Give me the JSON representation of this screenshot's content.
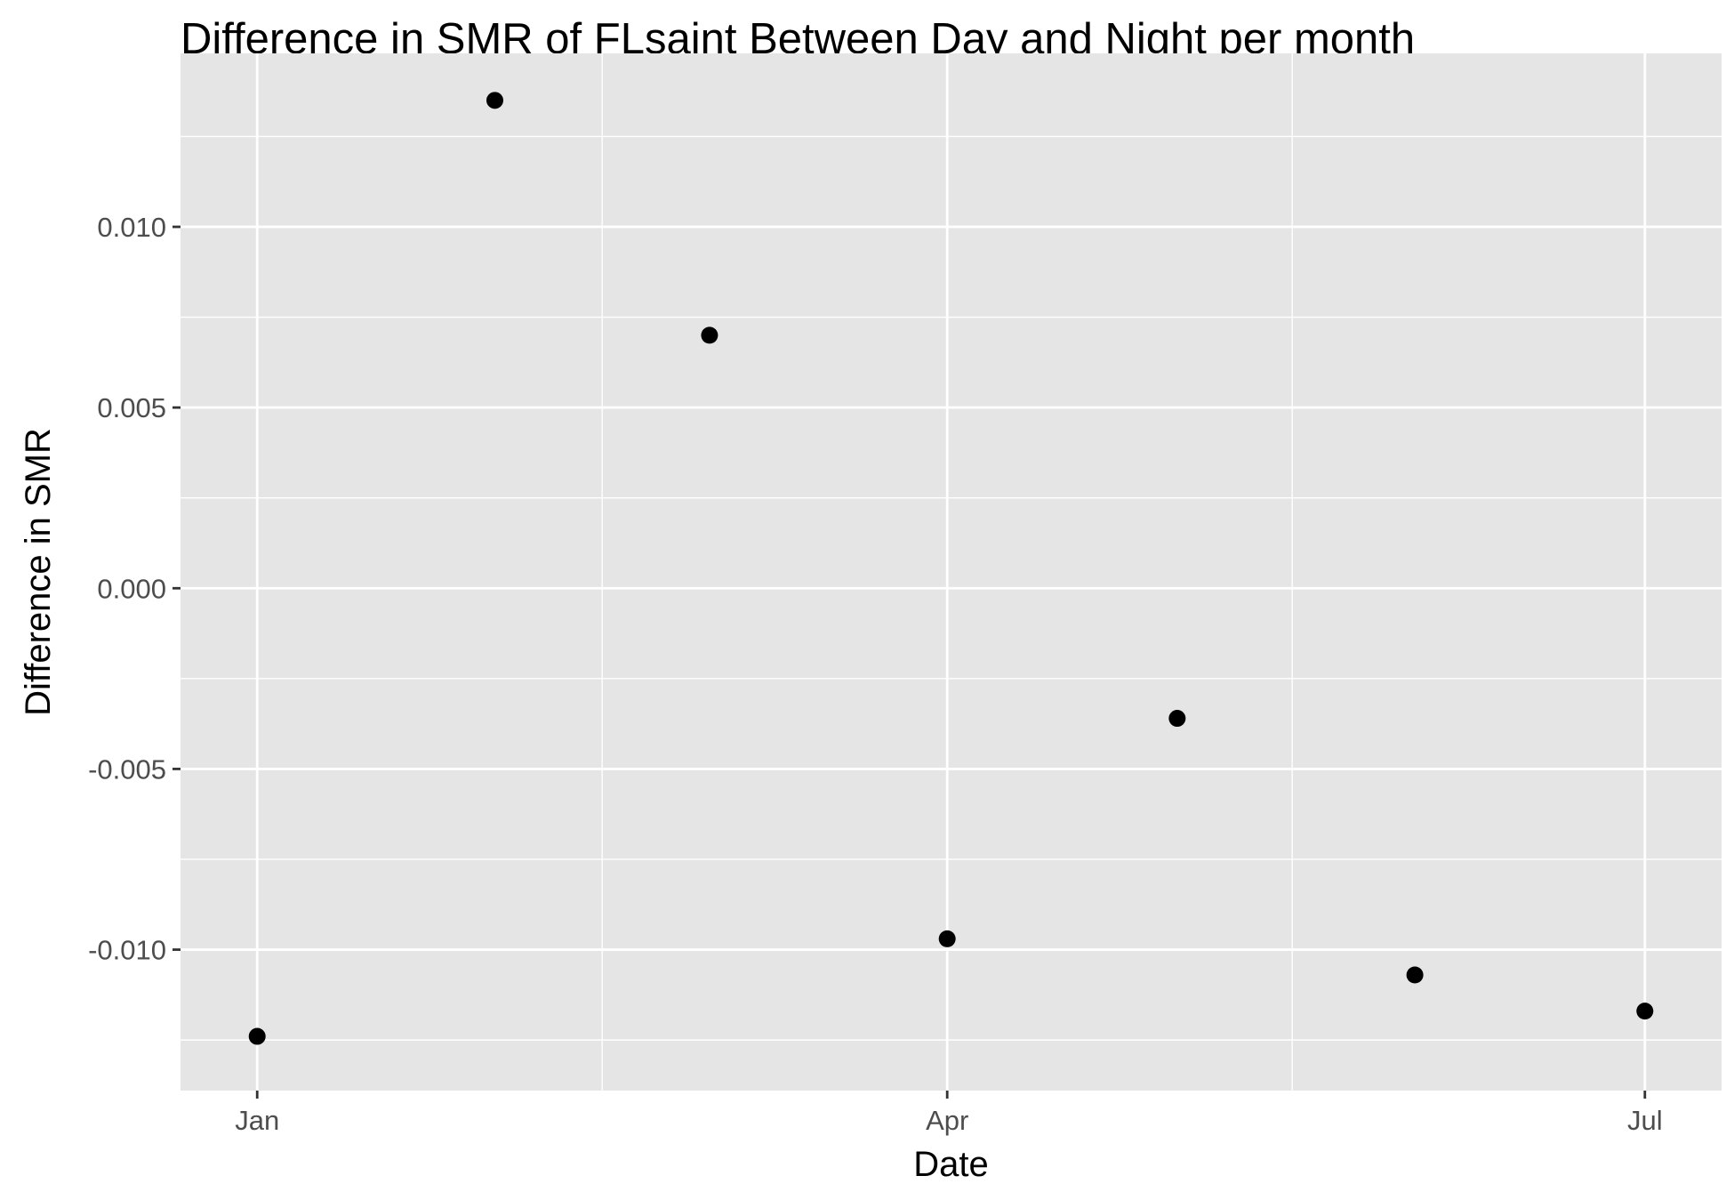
{
  "chart_data": {
    "type": "scatter",
    "title": "Difference in SMR of FLsaint Between Day and Night per month",
    "xlabel": "Date",
    "ylabel": "Difference in SMR",
    "x_axis_kind": "date",
    "x_ticks": [
      {
        "date": "2023-01-01",
        "label": "Jan"
      },
      {
        "date": "2023-04-01",
        "label": "Apr"
      },
      {
        "date": "2023-07-01",
        "label": "Jul"
      }
    ],
    "x_minor_ticks": [
      "2023-02-15",
      "2023-05-16"
    ],
    "xlim": [
      "2022-12-22",
      "2023-07-11"
    ],
    "y_ticks": [
      {
        "value": 0.01,
        "label": "0.010"
      },
      {
        "value": 0.005,
        "label": "0.005"
      },
      {
        "value": 0.0,
        "label": "0.000"
      },
      {
        "value": -0.005,
        "label": "-0.005"
      },
      {
        "value": -0.01,
        "label": "-0.010"
      }
    ],
    "y_minor_ticks": [
      0.0125,
      0.0075,
      0.0025,
      -0.0025,
      -0.0075,
      -0.0125
    ],
    "ylim": [
      -0.0139,
      0.0148
    ],
    "grid": true,
    "panel_background": "#e5e5e5",
    "grid_color": "#ffffff",
    "point_color": "#000000",
    "points": [
      {
        "x": "2023-01-01",
        "y": -0.0124
      },
      {
        "x": "2023-02-01",
        "y": 0.0135
      },
      {
        "x": "2023-03-01",
        "y": 0.007
      },
      {
        "x": "2023-04-01",
        "y": -0.0097
      },
      {
        "x": "2023-05-01",
        "y": -0.0036
      },
      {
        "x": "2023-06-01",
        "y": -0.0107
      },
      {
        "x": "2023-07-01",
        "y": -0.0117
      }
    ]
  }
}
